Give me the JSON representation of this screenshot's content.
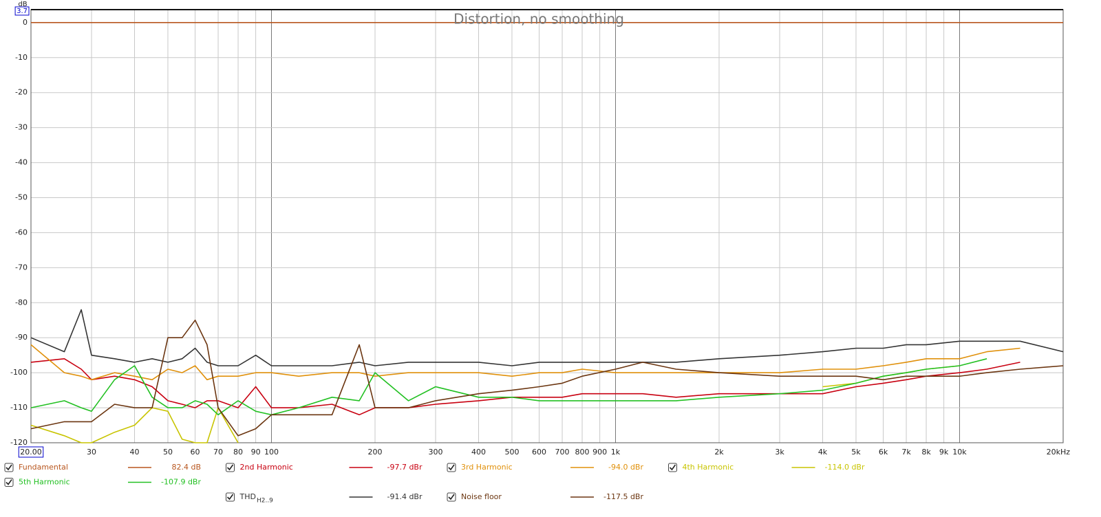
{
  "chart_data": {
    "type": "line",
    "title": "Distortion, no smoothing",
    "y_label": "dB",
    "log_x": true,
    "grid": true,
    "xlim": [
      20,
      20000
    ],
    "ylim": [
      -120,
      3.7
    ],
    "xticks": [
      {
        "value": 20,
        "label": "20.00"
      },
      30,
      40,
      50,
      60,
      70,
      80,
      90,
      100,
      200,
      300,
      400,
      500,
      600,
      700,
      800,
      900,
      {
        "value": 1000,
        "label": "1k"
      },
      {
        "value": 2000,
        "label": "2k"
      },
      {
        "value": 3000,
        "label": "3k"
      },
      {
        "value": 4000,
        "label": "4k"
      },
      {
        "value": 5000,
        "label": "5k"
      },
      {
        "value": 6000,
        "label": "6k"
      },
      {
        "value": 7000,
        "label": "7k"
      },
      {
        "value": 8000,
        "label": "8k"
      },
      {
        "value": 9000,
        "label": "9k"
      },
      {
        "value": 10000,
        "label": "10k"
      },
      {
        "value": 20000,
        "label": "20kHz"
      }
    ],
    "yticks": [
      3.7,
      0,
      -10,
      -20,
      -30,
      -40,
      -50,
      -60,
      -70,
      -80,
      -90,
      -100,
      -110,
      -120
    ],
    "x": [
      20,
      25,
      28,
      30,
      35,
      40,
      45,
      50,
      55,
      60,
      65,
      70,
      80,
      90,
      100,
      120,
      150,
      180,
      200,
      250,
      300,
      400,
      500,
      600,
      700,
      800,
      1000,
      1200,
      1500,
      2000,
      3000,
      4000,
      5000,
      6000,
      7000,
      8000,
      10000,
      12000,
      15000,
      20000
    ],
    "series": [
      {
        "name": "Fundamental",
        "legend_value": "82.4 dB",
        "color": "#b8561e",
        "values": [
          0,
          0,
          0,
          0,
          0,
          0,
          0,
          0,
          0,
          0,
          0,
          0,
          0,
          0,
          0,
          0,
          0,
          0,
          0,
          0,
          0,
          0,
          0,
          0,
          0,
          0,
          0,
          0,
          0,
          0,
          0,
          0,
          0,
          0,
          0,
          0,
          0,
          0,
          0,
          0
        ]
      },
      {
        "name": "2nd Harmonic",
        "legend_value": "-97.7 dBr",
        "color": "#c80010",
        "values": [
          -97,
          -96,
          -99,
          -102,
          -101,
          -102,
          -104,
          -108,
          -109,
          -110,
          -108,
          -108,
          -110,
          -104,
          -110,
          -110,
          -109,
          -112,
          -110,
          -110,
          -109,
          -108,
          -107,
          -107,
          -107,
          -106,
          -106,
          -106,
          -107,
          -106,
          -106,
          -106,
          -104,
          -103,
          -102,
          -101,
          -100,
          -99,
          -97,
          null
        ]
      },
      {
        "name": "3rd Harmonic",
        "legend_value": "-94.0 dBr",
        "color": "#e0900a",
        "values": [
          -92,
          -100,
          -101,
          -102,
          -100,
          -101,
          -102,
          -99,
          -100,
          -98,
          -102,
          -101,
          -101,
          -100,
          -100,
          -101,
          -100,
          -100,
          -101,
          -100,
          -100,
          -100,
          -101,
          -100,
          -100,
          -99,
          -100,
          -100,
          -100,
          -100,
          -100,
          -99,
          -99,
          -98,
          -97,
          -96,
          -96,
          -94,
          -93,
          null
        ]
      },
      {
        "name": "4th Harmonic",
        "legend_value": "-114.0 dBr",
        "color": "#c8c400",
        "values": [
          -115,
          -118,
          -120,
          -120,
          -117,
          -115,
          -110,
          -111,
          -119,
          -120,
          -120,
          -110,
          -120,
          null,
          null,
          null,
          null,
          null,
          null,
          null,
          null,
          null,
          null,
          null,
          null,
          null,
          null,
          null,
          null,
          null,
          null,
          -104,
          -103,
          -101,
          -100,
          -99,
          -98,
          null,
          null,
          null
        ]
      },
      {
        "name": "5th Harmonic",
        "legend_value": "-107.9 dBr",
        "color": "#22c022",
        "values": [
          -110,
          -108,
          -110,
          -111,
          -102,
          -98,
          -107,
          -110,
          -110,
          -108,
          -109,
          -112,
          -108,
          -111,
          -112,
          -110,
          -107,
          -108,
          -100,
          -108,
          -104,
          -107,
          -107,
          -108,
          -108,
          -108,
          -108,
          -108,
          -108,
          -107,
          -106,
          -105,
          -103,
          -101,
          -100,
          -99,
          -98,
          -96,
          null,
          null
        ]
      },
      {
        "name": "THD",
        "name_sub": "H2..9",
        "legend_value": "-91.4 dBr",
        "color": "#333333",
        "values": [
          -90,
          -94,
          -82,
          -95,
          -96,
          -97,
          -96,
          -97,
          -96,
          -93,
          -97,
          -98,
          -98,
          -95,
          -98,
          -98,
          -98,
          -97,
          -98,
          -97,
          -97,
          -97,
          -98,
          -97,
          -97,
          -97,
          -97,
          -97,
          -97,
          -96,
          -95,
          -94,
          -93,
          -93,
          -92,
          -92,
          -91,
          -91,
          -91,
          -94
        ]
      },
      {
        "name": "Noise floor",
        "legend_value": "-117.5 dBr",
        "color": "#6b3510",
        "values": [
          -116,
          -114,
          -114,
          -114,
          -109,
          -110,
          -110,
          -90,
          -90,
          -85,
          -92,
          -110,
          -118,
          -116,
          -112,
          -112,
          -112,
          -92,
          -110,
          -110,
          -108,
          -106,
          -105,
          -104,
          -103,
          -101,
          -99,
          -97,
          -99,
          -100,
          -101,
          -101,
          -101,
          -102,
          -101,
          -101,
          -101,
          -100,
          -99,
          -98
        ]
      }
    ]
  }
}
